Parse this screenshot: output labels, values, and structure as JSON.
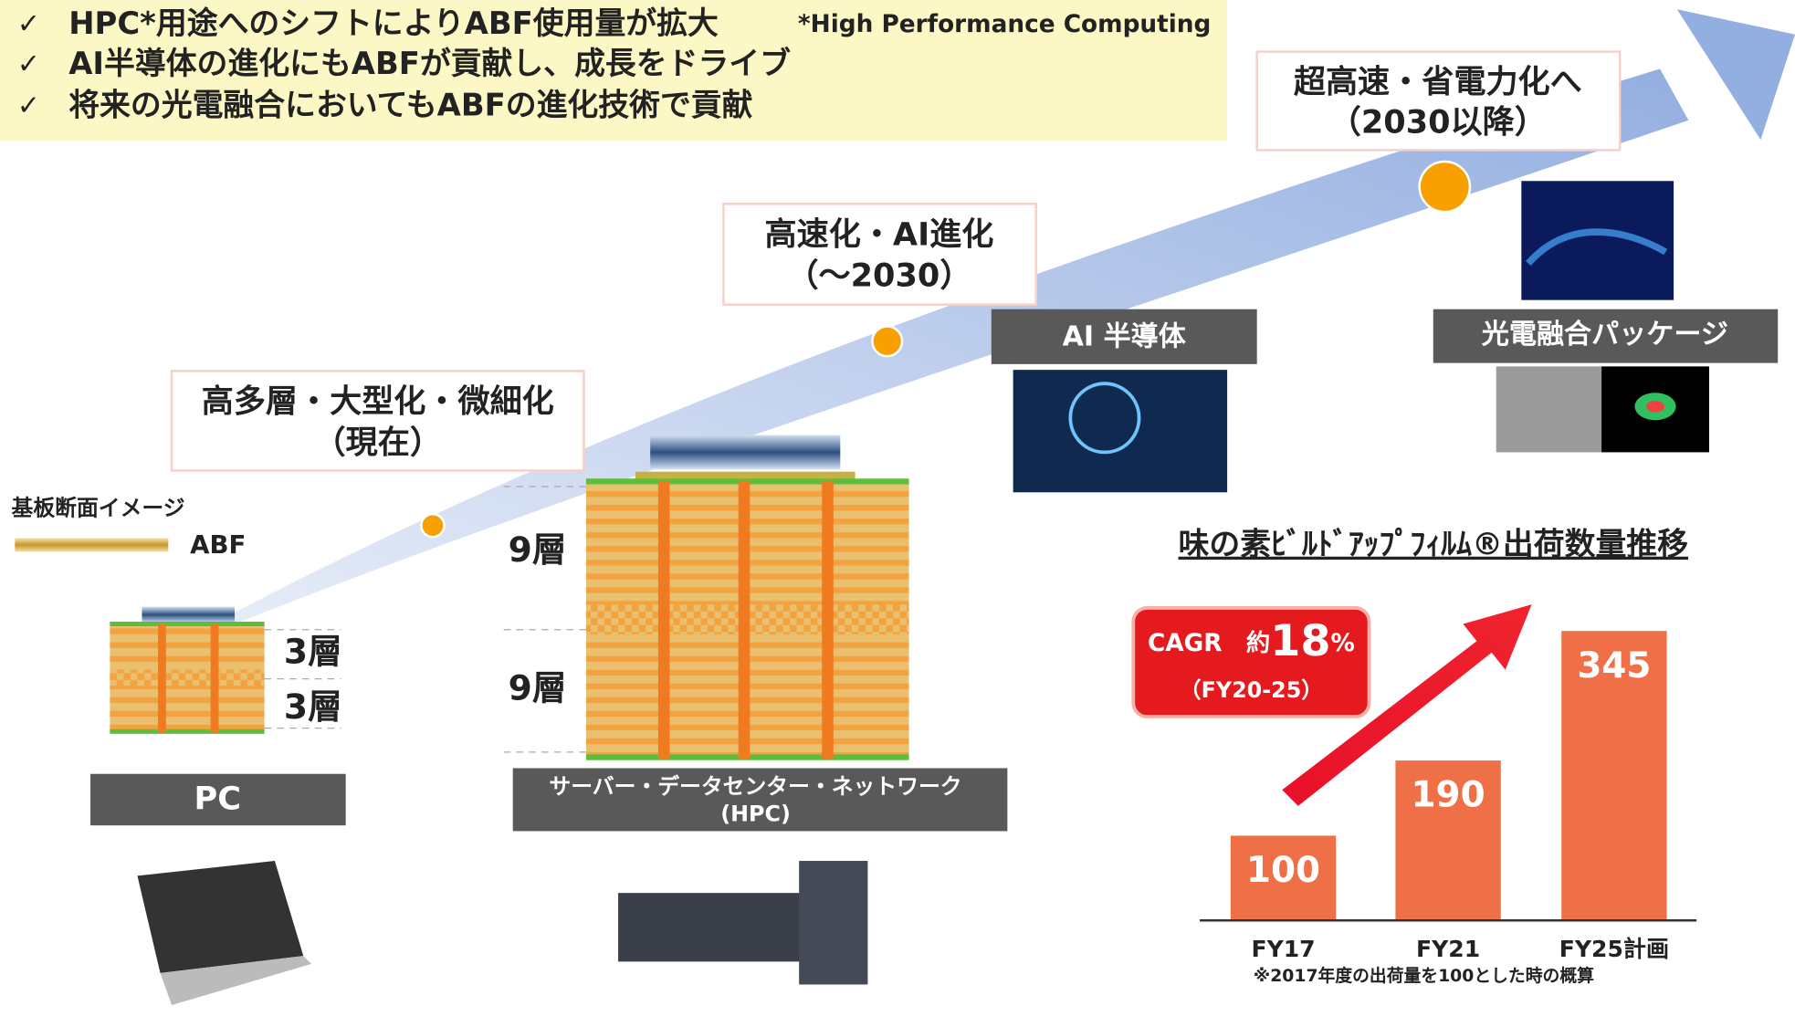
{
  "header": {
    "check": "✓",
    "points": [
      "HPC*用途へのシフトによりABF使用量が拡大",
      "AI半導体の進化にもABFが貢献し、成長をドライブ",
      "将来の光電融合においてもABFの進化技術で貢献"
    ],
    "footnote": "*High Performance Computing"
  },
  "milestones": [
    {
      "lines": [
        "高多層・大型化・微細化",
        "（現在）"
      ]
    },
    {
      "lines": [
        "高速化・AI進化",
        "（～2030）"
      ]
    },
    {
      "lines": [
        "超高速・省電力化へ",
        "（2030以降）"
      ]
    }
  ],
  "applications": {
    "pc": "PC",
    "hpc": [
      "サーバー・データセンター・ネットワーク",
      "(HPC)"
    ],
    "ai": "AI 半導体",
    "photonic": "光電融合パッケージ"
  },
  "legend": {
    "title": "基板断面イメージ",
    "abf": "ABF"
  },
  "layers": [
    "3層",
    "3層",
    "9層",
    "9層"
  ],
  "chart_data": {
    "type": "bar",
    "title": "味の素ﾋﾞﾙﾄﾞｱｯﾌﾟﾌｨﾙﾑ®出荷数量推移",
    "categories": [
      "FY17",
      "FY21",
      "FY25計画"
    ],
    "values": [
      100,
      190,
      345
    ],
    "color": "#ef6f47",
    "annotation": {
      "prefix": "CAGR　約",
      "number": "18",
      "unit": "%",
      "period": "（FY20-25）"
    },
    "note": "※2017年度の出荷量を100とした時の概算"
  }
}
